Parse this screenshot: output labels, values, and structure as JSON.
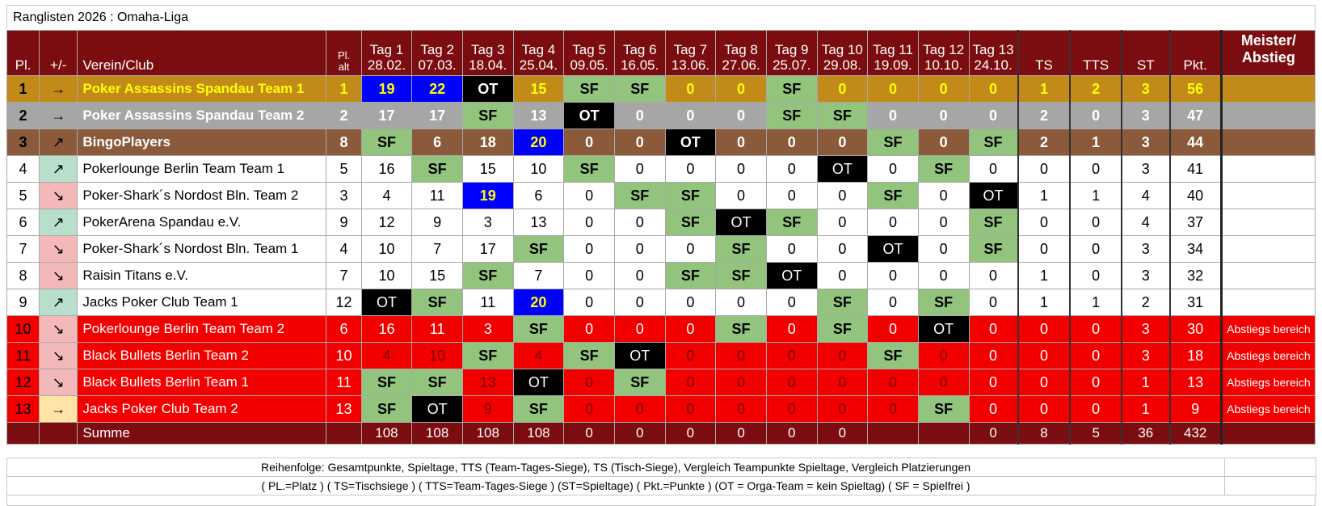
{
  "title": "Ranglisten 2026 : Omaha-Liga",
  "header": {
    "pl": "Pl.",
    "move": "+/-",
    "club": "Verein/Club",
    "pl_alt": [
      "Pl.",
      "alt"
    ],
    "days": [
      {
        "tag": "Tag 1",
        "date": "28.02."
      },
      {
        "tag": "Tag 2",
        "date": "07.03."
      },
      {
        "tag": "Tag 3",
        "date": "18.04."
      },
      {
        "tag": "Tag 4",
        "date": "25.04."
      },
      {
        "tag": "Tag 5",
        "date": "09.05."
      },
      {
        "tag": "Tag 6",
        "date": "16.05."
      },
      {
        "tag": "Tag 7",
        "date": "13.06."
      },
      {
        "tag": "Tag 8",
        "date": "27.06."
      },
      {
        "tag": "Tag 9",
        "date": "25.07."
      },
      {
        "tag": "Tag 10",
        "date": "29.08."
      },
      {
        "tag": "Tag 11",
        "date": "19.09."
      },
      {
        "tag": "Tag 12",
        "date": "10.10."
      },
      {
        "tag": "Tag 13",
        "date": "24.10."
      }
    ],
    "ts": "TS",
    "tts": "TTS",
    "st": "ST",
    "pkt": "Pkt.",
    "meister": [
      "Meister/",
      "Abstieg"
    ]
  },
  "rows": [
    {
      "pl": "1",
      "move": "→",
      "club": "Poker Assassins Spandau Team 1",
      "alt": "1",
      "days": [
        "19",
        "22",
        "OT",
        "15",
        "SF",
        "SF",
        "0",
        "0",
        "SF",
        "0",
        "0",
        "0",
        "0"
      ],
      "ts": "1",
      "tts": "2",
      "st": "3",
      "pkt": "56",
      "note": ""
    },
    {
      "pl": "2",
      "move": "→",
      "club": "Poker Assassins Spandau Team 2",
      "alt": "2",
      "days": [
        "17",
        "17",
        "SF",
        "13",
        "OT",
        "0",
        "0",
        "0",
        "SF",
        "SF",
        "0",
        "0",
        "0"
      ],
      "ts": "2",
      "tts": "0",
      "st": "3",
      "pkt": "47",
      "note": ""
    },
    {
      "pl": "3",
      "move": "↗",
      "club": "BingoPlayers",
      "alt": "8",
      "days": [
        "SF",
        "6",
        "18",
        "20",
        "0",
        "0",
        "OT",
        "0",
        "0",
        "0",
        "SF",
        "0",
        "SF"
      ],
      "ts": "2",
      "tts": "1",
      "st": "3",
      "pkt": "44",
      "note": ""
    },
    {
      "pl": "4",
      "move": "↗",
      "club": "Pokerlounge Berlin Team Team 1",
      "alt": "5",
      "days": [
        "16",
        "SF",
        "15",
        "10",
        "SF",
        "0",
        "0",
        "0",
        "0",
        "OT",
        "0",
        "SF",
        "0"
      ],
      "ts": "0",
      "tts": "0",
      "st": "3",
      "pkt": "41",
      "note": ""
    },
    {
      "pl": "5",
      "move": "↘",
      "club": "Poker-Shark´s Nordost Bln. Team 2",
      "alt": "3",
      "days": [
        "4",
        "11",
        "19",
        "6",
        "0",
        "SF",
        "SF",
        "0",
        "0",
        "0",
        "SF",
        "0",
        "OT"
      ],
      "ts": "1",
      "tts": "1",
      "st": "4",
      "pkt": "40",
      "note": ""
    },
    {
      "pl": "6",
      "move": "↗",
      "club": "PokerArena Spandau e.V.",
      "alt": "9",
      "days": [
        "12",
        "9",
        "3",
        "13",
        "0",
        "0",
        "SF",
        "OT",
        "SF",
        "0",
        "0",
        "0",
        "SF"
      ],
      "ts": "0",
      "tts": "0",
      "st": "4",
      "pkt": "37",
      "note": ""
    },
    {
      "pl": "7",
      "move": "↘",
      "club": "Poker-Shark´s Nordost Bln. Team 1",
      "alt": "4",
      "days": [
        "10",
        "7",
        "17",
        "SF",
        "0",
        "0",
        "0",
        "SF",
        "0",
        "0",
        "OT",
        "0",
        "SF"
      ],
      "ts": "0",
      "tts": "0",
      "st": "3",
      "pkt": "34",
      "note": ""
    },
    {
      "pl": "8",
      "move": "↘",
      "club": "Raisin Titans e.V.",
      "alt": "7",
      "days": [
        "10",
        "15",
        "SF",
        "7",
        "0",
        "0",
        "SF",
        "SF",
        "OT",
        "0",
        "0",
        "0",
        "0"
      ],
      "ts": "1",
      "tts": "0",
      "st": "3",
      "pkt": "32",
      "note": ""
    },
    {
      "pl": "9",
      "move": "↗",
      "club": "Jacks Poker Club Team 1",
      "alt": "12",
      "days": [
        "OT",
        "SF",
        "11",
        "20",
        "0",
        "0",
        "0",
        "0",
        "0",
        "SF",
        "0",
        "SF",
        "0"
      ],
      "ts": "1",
      "tts": "1",
      "st": "2",
      "pkt": "31",
      "note": ""
    },
    {
      "pl": "10",
      "move": "↘",
      "club": "Pokerlounge Berlin Team Team 2",
      "alt": "6",
      "days": [
        "16",
        "11",
        "3",
        "SF",
        "0",
        "0",
        "0",
        "SF",
        "0",
        "SF",
        "0",
        "OT",
        "0"
      ],
      "ts": "0",
      "tts": "0",
      "st": "3",
      "pkt": "30",
      "note": "Abstiegs bereich"
    },
    {
      "pl": "11",
      "move": "↘",
      "club": "Black Bullets Berlin Team 2",
      "alt": "10",
      "days": [
        "4",
        "10",
        "SF",
        "4",
        "SF",
        "OT",
        "0",
        "0",
        "0",
        "0",
        "SF",
        "0",
        "0"
      ],
      "ts": "0",
      "tts": "0",
      "st": "3",
      "pkt": "18",
      "note": "Abstiegs bereich"
    },
    {
      "pl": "12",
      "move": "↘",
      "club": "Black Bullets Berlin Team 1",
      "alt": "11",
      "days": [
        "SF",
        "SF",
        "13",
        "OT",
        "0",
        "SF",
        "0",
        "0",
        "0",
        "0",
        "0",
        "0",
        "0"
      ],
      "ts": "0",
      "tts": "0",
      "st": "1",
      "pkt": "13",
      "note": "Abstiegs bereich"
    },
    {
      "pl": "13",
      "move": "→",
      "club": "Jacks Poker Club Team 2",
      "alt": "13",
      "days": [
        "SF",
        "OT",
        "9",
        "SF",
        "0",
        "0",
        "0",
        "0",
        "0",
        "0",
        "0",
        "SF",
        "0"
      ],
      "ts": "0",
      "tts": "0",
      "st": "1",
      "pkt": "9",
      "note": "Abstiegs bereich"
    }
  ],
  "sum": {
    "label": "Summe",
    "days": [
      "108",
      "108",
      "108",
      "108",
      "0",
      "0",
      "0",
      "0",
      "0",
      "0",
      "",
      "",
      "0"
    ],
    "ts": "8",
    "tts": "5",
    "st": "36",
    "pkt": "432"
  },
  "footer": [
    "Reihenfolge: Gesamtpunkte, Spieltage, TTS (Team-Tages-Siege), TS (Tisch-Siege), Vergleich Teampunkte Spieltage, Vergleich Platzierungen",
    "( PL.=Platz ) ( TS=Tischsiege ) ( TTS=Team-Tages-Siege ) (ST=Spieltage) ( Pkt.=Punkte ) (OT = Orga-Team = kein Spieltag) ( SF = Spielfrei )"
  ],
  "colors": {
    "header_bg": "#7b0d10",
    "rank1": "#c28a19",
    "rank2": "#a6a6a6",
    "rank3": "#8a5a3a",
    "relegation": "#f20000",
    "spielfrei": "#93c47d",
    "orga_team": "#000000",
    "day_winner": "#0000ff"
  }
}
